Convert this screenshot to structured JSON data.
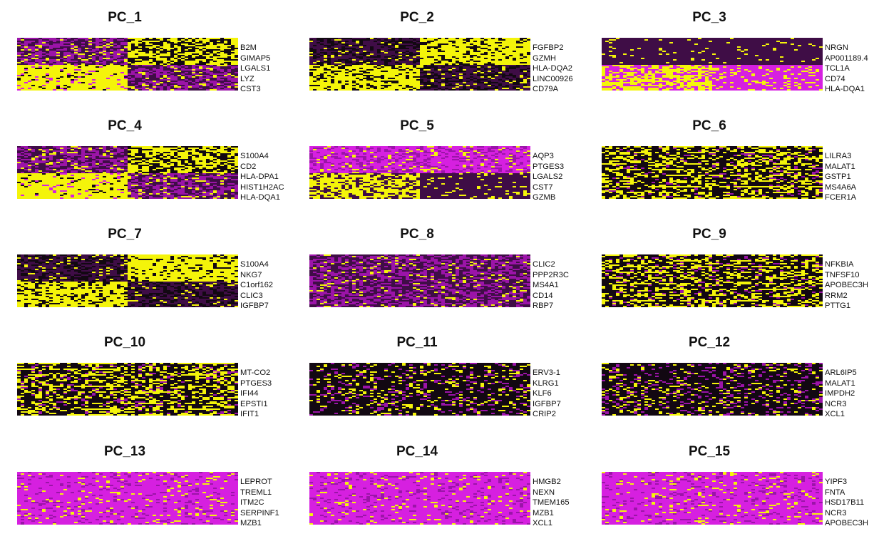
{
  "colors": {
    "low": "#3f0d46",
    "mid": "#9b14a8",
    "midhigh": "#d620e0",
    "high": "#f4f40a",
    "dark": "#120812"
  },
  "chart_data": [
    {
      "type": "heatmap",
      "title": "PC_1",
      "genes": [
        "B2M",
        "GIMAP5",
        "LGALS1",
        "LYZ",
        "CST3"
      ],
      "split": 0.5,
      "pattern": "split_yellow_bottom_left"
    },
    {
      "type": "heatmap",
      "title": "PC_2",
      "genes": [
        "FGFBP2",
        "GZMH",
        "HLA-DQA2",
        "LINC00926",
        "CD79A"
      ],
      "split": 0.5,
      "pattern": "split_yellow_top_right"
    },
    {
      "type": "heatmap",
      "title": "PC_3",
      "genes": [
        "NRGN",
        "AP001189.4",
        "TCL1A",
        "CD74",
        "HLA-DQA1"
      ],
      "split": 0.5,
      "pattern": "split_purple_dark_top"
    },
    {
      "type": "heatmap",
      "title": "PC_4",
      "genes": [
        "S100A4",
        "CD2",
        "HLA-DPA1",
        "HIST1H2AC",
        "HLA-DQA1"
      ],
      "split": 0.5,
      "pattern": "split_yellow_bottom_left"
    },
    {
      "type": "heatmap",
      "title": "PC_5",
      "genes": [
        "AQP3",
        "PTGES3",
        "LGALS2",
        "CST7",
        "GZMB"
      ],
      "split": 0.5,
      "pattern": "split_purple_top"
    },
    {
      "type": "heatmap",
      "title": "PC_6",
      "genes": [
        "LILRA3",
        "MALAT1",
        "GSTP1",
        "MS4A6A",
        "FCER1A"
      ],
      "split": 0.5,
      "pattern": "dark_mixed"
    },
    {
      "type": "heatmap",
      "title": "PC_7",
      "genes": [
        "S100A4",
        "NKG7",
        "C1orf162",
        "CLIC3",
        "IGFBP7"
      ],
      "split": 0.5,
      "pattern": "split_yellow_top_right"
    },
    {
      "type": "heatmap",
      "title": "PC_8",
      "genes": [
        "CLIC2",
        "PPP2R3C",
        "MS4A1",
        "CD14",
        "RBP7"
      ],
      "split": 0.5,
      "pattern": "purple_sparse"
    },
    {
      "type": "heatmap",
      "title": "PC_9",
      "genes": [
        "NFKBIA",
        "TNFSF10",
        "APOBEC3H",
        "RRM2",
        "PTTG1"
      ],
      "split": 0.5,
      "pattern": "dark_mixed"
    },
    {
      "type": "heatmap",
      "title": "PC_10",
      "genes": [
        "MT-CO2",
        "PTGES3",
        "IFI44",
        "EPSTI1",
        "IFIT1"
      ],
      "split": 0.5,
      "pattern": "dark_mixed"
    },
    {
      "type": "heatmap",
      "title": "PC_11",
      "genes": [
        "ERV3-1",
        "KLRG1",
        "KLF6",
        "IGFBP7",
        "CRIP2"
      ],
      "split": 0.5,
      "pattern": "dark_sparse"
    },
    {
      "type": "heatmap",
      "title": "PC_12",
      "genes": [
        "ARL6IP5",
        "MALAT1",
        "IMPDH2",
        "NCR3",
        "XCL1"
      ],
      "split": 0.5,
      "pattern": "dark_sparse"
    },
    {
      "type": "heatmap",
      "title": "PC_13",
      "genes": [
        "LEPROT",
        "TREML1",
        "ITM2C",
        "SERPINF1",
        "MZB1"
      ],
      "split": 0.5,
      "pattern": "magenta_sparse"
    },
    {
      "type": "heatmap",
      "title": "PC_14",
      "genes": [
        "HMGB2",
        "NEXN",
        "TMEM165",
        "MZB1",
        "XCL1"
      ],
      "split": 0.5,
      "pattern": "magenta_sparse"
    },
    {
      "type": "heatmap",
      "title": "PC_15",
      "genes": [
        "YIPF3",
        "FNTA",
        "HSD17B11",
        "NCR3",
        "APOBEC3H"
      ],
      "split": 0.5,
      "pattern": "magenta_sparse"
    }
  ]
}
